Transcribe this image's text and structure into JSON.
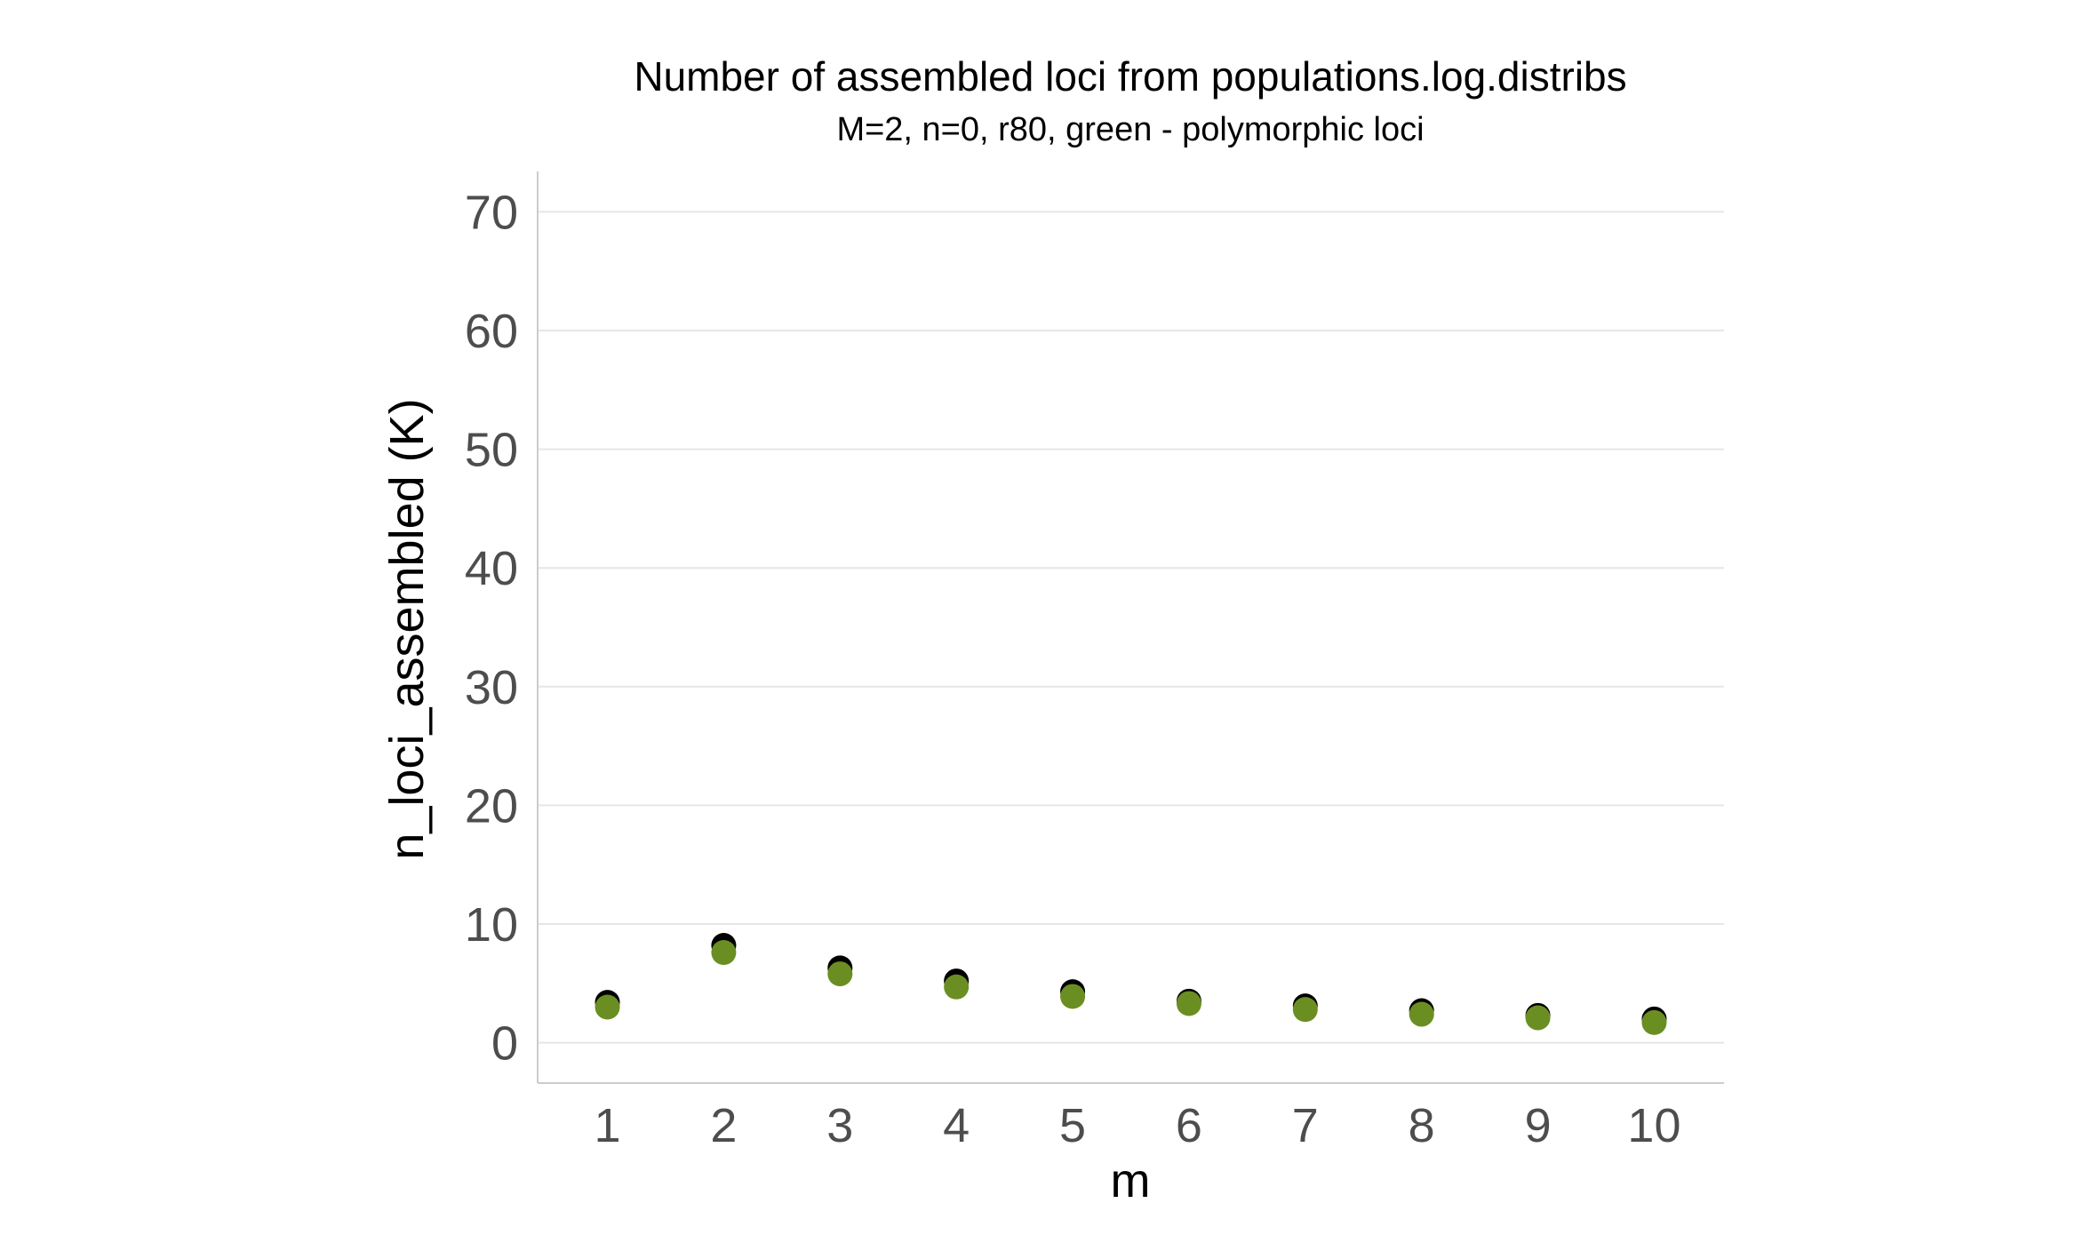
{
  "chart_data": {
    "type": "scatter",
    "title": "Number of assembled loci from populations.log.distribs",
    "subtitle": "M=2, n=0, r80, green - polymorphic loci",
    "xlabel": "m",
    "ylabel": "n_loci_assembled (K)",
    "x": [
      1,
      2,
      3,
      4,
      5,
      6,
      7,
      8,
      9,
      10
    ],
    "x_ticks": [
      "1",
      "2",
      "3",
      "4",
      "5",
      "6",
      "7",
      "8",
      "9",
      "10"
    ],
    "y_ticks": [
      "0",
      "10",
      "20",
      "30",
      "40",
      "50",
      "60",
      "70"
    ],
    "ylim": [
      -3.4,
      73.4
    ],
    "xlim": [
      0.4,
      10.6
    ],
    "grid": "horizontal",
    "legend": "none",
    "series": [
      {
        "color": "#000000",
        "values": [
          3.4,
          8.2,
          6.3,
          5.2,
          4.3,
          3.5,
          3.1,
          2.7,
          2.3,
          2.0
        ]
      },
      {
        "color": "#6b8e23",
        "values": [
          3.0,
          7.6,
          5.8,
          4.7,
          3.9,
          3.3,
          2.8,
          2.4,
          2.1,
          1.7
        ]
      }
    ]
  }
}
